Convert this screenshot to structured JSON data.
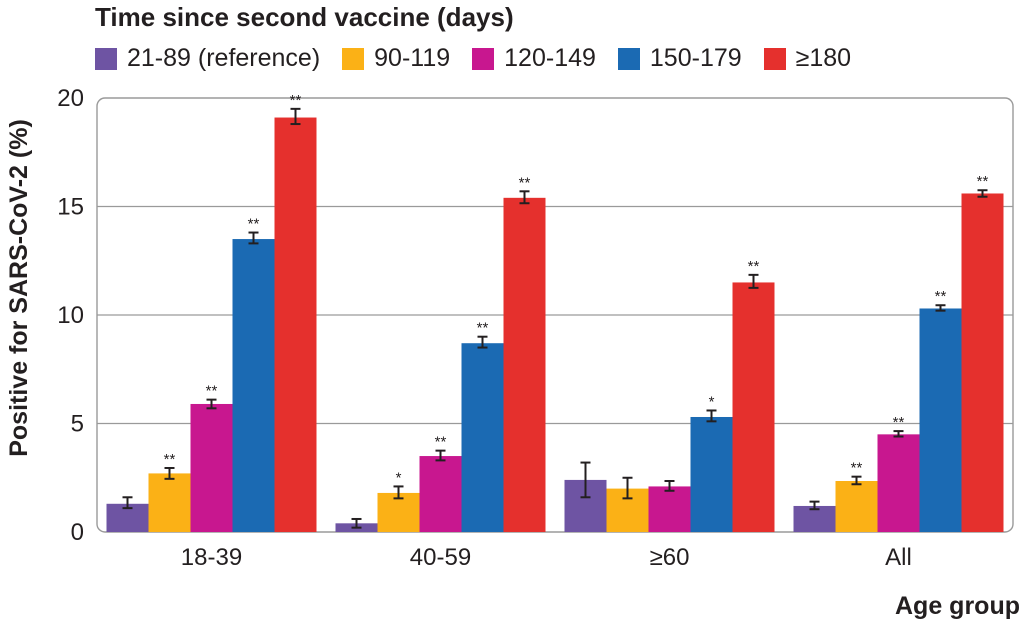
{
  "chart_data": {
    "type": "bar",
    "legend_title": "Time since second vaccine (days)",
    "xlabel": "Age group",
    "ylabel": "Positive for SARS-CoV-2 (%)",
    "ylim": [
      0,
      20
    ],
    "yticks": [
      "0",
      "5",
      "10",
      "15",
      "20"
    ],
    "grid": true,
    "legend_position": "top",
    "categories": [
      "18-39",
      "40-59",
      "≥60",
      "All"
    ],
    "series": [
      {
        "name": "21-89 (reference)",
        "color": "#6e54a3",
        "values": [
          1.3,
          0.4,
          2.4,
          1.2
        ],
        "err_low": [
          1.1,
          0.2,
          1.6,
          1.05
        ],
        "err_high": [
          1.6,
          0.6,
          3.2,
          1.4
        ],
        "sig": [
          "",
          "",
          "",
          ""
        ]
      },
      {
        "name": "90-119",
        "color": "#fbb116",
        "values": [
          2.7,
          1.8,
          2.0,
          2.35
        ],
        "err_low": [
          2.45,
          1.55,
          1.55,
          2.2
        ],
        "err_high": [
          2.95,
          2.1,
          2.5,
          2.55
        ],
        "sig": [
          "**",
          "*",
          "",
          "**"
        ]
      },
      {
        "name": "120-149",
        "color": "#c8178f",
        "values": [
          5.9,
          3.5,
          2.1,
          4.5
        ],
        "err_low": [
          5.7,
          3.3,
          1.9,
          4.4
        ],
        "err_high": [
          6.1,
          3.75,
          2.35,
          4.65
        ],
        "sig": [
          "**",
          "**",
          "",
          "**"
        ]
      },
      {
        "name": "150-179",
        "color": "#1b6ab3",
        "values": [
          13.5,
          8.7,
          5.3,
          10.3
        ],
        "err_low": [
          13.3,
          8.5,
          5.1,
          10.2
        ],
        "err_high": [
          13.8,
          9.0,
          5.6,
          10.45
        ],
        "sig": [
          "**",
          "**",
          "*",
          "**"
        ]
      },
      {
        "name": "≥180",
        "color": "#e5302d",
        "values": [
          19.1,
          15.4,
          11.5,
          15.6
        ],
        "err_low": [
          18.8,
          15.15,
          11.25,
          15.45
        ],
        "err_high": [
          19.5,
          15.7,
          11.85,
          15.75
        ],
        "sig": [
          "**",
          "**",
          "**",
          "**"
        ]
      }
    ]
  }
}
